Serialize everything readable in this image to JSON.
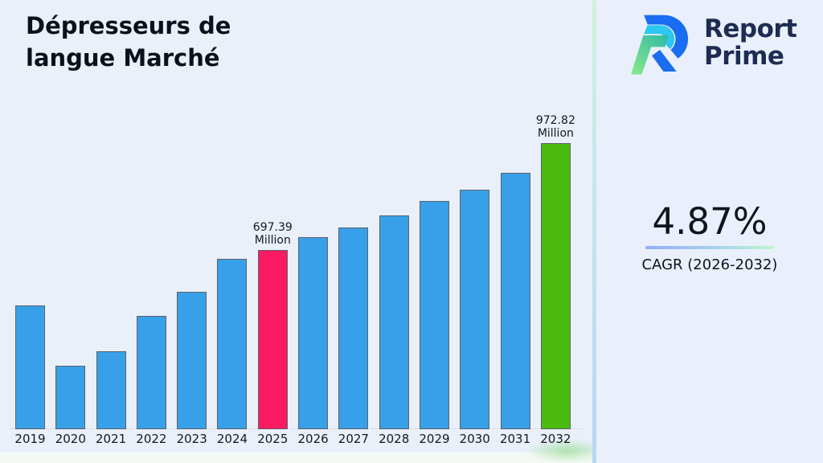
{
  "page": {
    "background": "#eaf0fa",
    "divider_gradient": [
      "#d2f0dc",
      "#b6d7f0"
    ]
  },
  "title": {
    "line1": "Dépresseurs de",
    "line2": "langue Marché",
    "full": "Dépresseurs de langue Marché"
  },
  "logo": {
    "name": "Report Prime",
    "line1": "Report",
    "line2": "Prime",
    "text_color": "#1e2b52",
    "mark_colors": {
      "blue": "#1a6cf0",
      "cyan": "#2bc7ef",
      "green_light": "#8be98c",
      "green_teal": "#2fb9a4"
    }
  },
  "stat": {
    "value": "4.87%",
    "label": "CAGR (2026-2032)",
    "underline_gradient": [
      "#93aef5",
      "#c2f5ca"
    ]
  },
  "chart_data": {
    "type": "bar",
    "title": "Dépresseurs de langue Marché",
    "unit": "Million",
    "xlabel": "",
    "ylabel": "",
    "ylim": [
      236,
      1030
    ],
    "grid": false,
    "legend": false,
    "y_axis_hidden": true,
    "categories": [
      "2019",
      "2020",
      "2021",
      "2022",
      "2023",
      "2024",
      "2025",
      "2026",
      "2027",
      "2028",
      "2029",
      "2030",
      "2031",
      "2032"
    ],
    "colors": {
      "default": "#38a0e8",
      "highlight_2025": "#fa1b63",
      "highlight_2032": "#4cbb0f",
      "bar_border": "#5d6268"
    },
    "series": [
      {
        "year": "2019",
        "value": 554
      },
      {
        "year": "2020",
        "value": 399
      },
      {
        "year": "2021",
        "value": 437
      },
      {
        "year": "2022",
        "value": 528
      },
      {
        "year": "2023",
        "value": 590
      },
      {
        "year": "2024",
        "value": 675
      },
      {
        "year": "2025",
        "value": 697.39,
        "color": "#fa1b63",
        "label": "697.39\nMillion"
      },
      {
        "year": "2026",
        "value": 731
      },
      {
        "year": "2027",
        "value": 756
      },
      {
        "year": "2028",
        "value": 787
      },
      {
        "year": "2029",
        "value": 824
      },
      {
        "year": "2030",
        "value": 853
      },
      {
        "year": "2031",
        "value": 896
      },
      {
        "year": "2032",
        "value": 972.82,
        "color": "#4cbb0f",
        "label": "972.82\nMillion"
      }
    ],
    "data_labels": [
      "697.39 Million",
      "972.82 Million"
    ]
  }
}
